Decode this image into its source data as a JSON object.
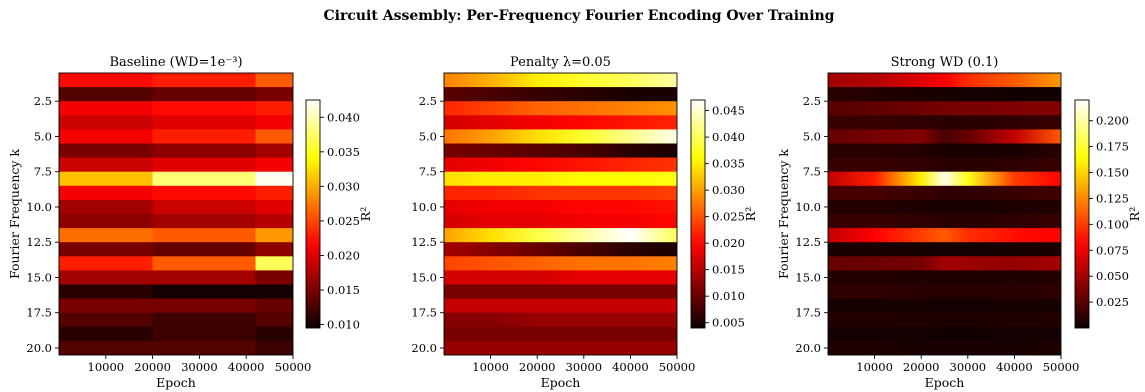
{
  "figure": {
    "title": "Circuit Assembly: Per-Frequency Fourier Encoding Over Training"
  },
  "chart_data": [
    {
      "type": "heatmap",
      "title": "Baseline (WD=1e⁻³)",
      "xlabel": "Epoch",
      "ylabel": "Fourier Frequency k",
      "colorbar_label": "R²",
      "colormap": "hot",
      "xlim": [
        0,
        50000
      ],
      "ylim": [
        20.5,
        0.5
      ],
      "x_ticks": [
        10000,
        20000,
        30000,
        40000,
        50000
      ],
      "y_ticks": [
        2.5,
        5.0,
        7.5,
        10.0,
        12.5,
        15.0,
        17.5,
        20.0
      ],
      "colorbar_ticks": [
        0.01,
        0.015,
        0.02,
        0.025,
        0.03,
        0.035,
        0.04
      ],
      "color_range": [
        0.0095,
        0.0425
      ],
      "epochs": [
        0,
        20000,
        42000,
        50000
      ],
      "frequencies": [
        1,
        2,
        3,
        4,
        5,
        6,
        7,
        8,
        9,
        10,
        11,
        12,
        13,
        14,
        15,
        16,
        17,
        18,
        19,
        20
      ],
      "values": [
        [
          0.022,
          0.023,
          0.026
        ],
        [
          0.013,
          0.014,
          0.015
        ],
        [
          0.021,
          0.022,
          0.023
        ],
        [
          0.019,
          0.02,
          0.021
        ],
        [
          0.021,
          0.023,
          0.026
        ],
        [
          0.015,
          0.016,
          0.017
        ],
        [
          0.019,
          0.02,
          0.021
        ],
        [
          0.031,
          0.038,
          0.042
        ],
        [
          0.021,
          0.022,
          0.023
        ],
        [
          0.017,
          0.019,
          0.02
        ],
        [
          0.016,
          0.017,
          0.018
        ],
        [
          0.027,
          0.026,
          0.029
        ],
        [
          0.015,
          0.014,
          0.016
        ],
        [
          0.023,
          0.026,
          0.037
        ],
        [
          0.017,
          0.017,
          0.015
        ],
        [
          0.011,
          0.01,
          0.01
        ],
        [
          0.015,
          0.015,
          0.014
        ],
        [
          0.013,
          0.012,
          0.013
        ],
        [
          0.011,
          0.012,
          0.011
        ],
        [
          0.013,
          0.013,
          0.012
        ]
      ]
    },
    {
      "type": "heatmap",
      "title": "Penalty λ=0.05",
      "xlabel": "Epoch",
      "ylabel": "",
      "colorbar_label": "R²",
      "colormap": "hot",
      "xlim": [
        0,
        50000
      ],
      "ylim": [
        20.5,
        0.5
      ],
      "x_ticks": [
        10000,
        20000,
        30000,
        40000,
        50000
      ],
      "y_ticks": [
        2.5,
        5.0,
        7.5,
        10.0,
        12.5,
        15.0,
        17.5,
        20.0
      ],
      "colorbar_ticks": [
        0.005,
        0.01,
        0.015,
        0.02,
        0.025,
        0.03,
        0.035,
        0.04,
        0.045
      ],
      "color_range": [
        0.004,
        0.047
      ],
      "epochs": [
        0,
        10000,
        20000,
        30000,
        40000,
        50000
      ],
      "frequencies": [
        1,
        2,
        3,
        4,
        5,
        6,
        7,
        8,
        9,
        10,
        11,
        12,
        13,
        14,
        15,
        16,
        17,
        18,
        19,
        20
      ],
      "values": [
        [
          0.028,
          0.031,
          0.035,
          0.038,
          0.04,
          0.043
        ],
        [
          0.009,
          0.008,
          0.007,
          0.006,
          0.005,
          0.005
        ],
        [
          0.022,
          0.024,
          0.026,
          0.027,
          0.028,
          0.029
        ],
        [
          0.017,
          0.018,
          0.019,
          0.02,
          0.021,
          0.022
        ],
        [
          0.027,
          0.03,
          0.034,
          0.038,
          0.042,
          0.046
        ],
        [
          0.011,
          0.01,
          0.009,
          0.008,
          0.006,
          0.005
        ],
        [
          0.018,
          0.019,
          0.02,
          0.021,
          0.022,
          0.023
        ],
        [
          0.034,
          0.035,
          0.035,
          0.036,
          0.036,
          0.037
        ],
        [
          0.022,
          0.022,
          0.023,
          0.023,
          0.023,
          0.024
        ],
        [
          0.018,
          0.019,
          0.019,
          0.02,
          0.02,
          0.021
        ],
        [
          0.017,
          0.018,
          0.018,
          0.019,
          0.019,
          0.02
        ],
        [
          0.03,
          0.034,
          0.039,
          0.043,
          0.047,
          0.04
        ],
        [
          0.014,
          0.012,
          0.01,
          0.008,
          0.006,
          0.005
        ],
        [
          0.024,
          0.025,
          0.026,
          0.027,
          0.027,
          0.028
        ],
        [
          0.017,
          0.017,
          0.017,
          0.018,
          0.018,
          0.018
        ],
        [
          0.011,
          0.011,
          0.011,
          0.011,
          0.011,
          0.011
        ],
        [
          0.016,
          0.016,
          0.016,
          0.016,
          0.016,
          0.016
        ],
        [
          0.012,
          0.012,
          0.013,
          0.013,
          0.013,
          0.013
        ],
        [
          0.011,
          0.011,
          0.011,
          0.011,
          0.011,
          0.011
        ],
        [
          0.013,
          0.013,
          0.013,
          0.013,
          0.013,
          0.013
        ]
      ]
    },
    {
      "type": "heatmap",
      "title": "Strong WD (0.1)",
      "xlabel": "Epoch",
      "ylabel": "Fourier Frequency k",
      "colorbar_label": "R²",
      "colormap": "hot",
      "xlim": [
        0,
        50000
      ],
      "ylim": [
        20.5,
        0.5
      ],
      "x_ticks": [
        10000,
        20000,
        30000,
        40000,
        50000
      ],
      "y_ticks": [
        2.5,
        5.0,
        7.5,
        10.0,
        12.5,
        15.0,
        17.5,
        20.0
      ],
      "colorbar_ticks": [
        0.025,
        0.05,
        0.075,
        0.1,
        0.125,
        0.15,
        0.175,
        0.2
      ],
      "color_range": [
        0.0,
        0.22
      ],
      "epochs": [
        0,
        10000,
        20000,
        25000,
        30000,
        40000,
        50000
      ],
      "frequencies": [
        1,
        2,
        3,
        4,
        5,
        6,
        7,
        8,
        9,
        10,
        11,
        12,
        13,
        14,
        15,
        16,
        17,
        18,
        19,
        20
      ],
      "values": [
        [
          0.05,
          0.055,
          0.07,
          0.08,
          0.095,
          0.11,
          0.13
        ],
        [
          0.01,
          0.008,
          0.005,
          0.004,
          0.003,
          0.002,
          0.002
        ],
        [
          0.025,
          0.028,
          0.032,
          0.035,
          0.036,
          0.038,
          0.04
        ],
        [
          0.015,
          0.015,
          0.012,
          0.01,
          0.01,
          0.012,
          0.015
        ],
        [
          0.03,
          0.035,
          0.04,
          0.02,
          0.03,
          0.06,
          0.11
        ],
        [
          0.01,
          0.01,
          0.008,
          0.005,
          0.005,
          0.005,
          0.01
        ],
        [
          0.015,
          0.015,
          0.012,
          0.01,
          0.01,
          0.012,
          0.015
        ],
        [
          0.06,
          0.09,
          0.16,
          0.215,
          0.17,
          0.1,
          0.08
        ],
        [
          0.02,
          0.02,
          0.015,
          0.012,
          0.012,
          0.015,
          0.018
        ],
        [
          0.008,
          0.008,
          0.006,
          0.005,
          0.005,
          0.006,
          0.008
        ],
        [
          0.015,
          0.015,
          0.012,
          0.01,
          0.01,
          0.012,
          0.015
        ],
        [
          0.06,
          0.08,
          0.1,
          0.11,
          0.095,
          0.085,
          0.08
        ],
        [
          0.005,
          0.005,
          0.004,
          0.003,
          0.003,
          0.004,
          0.005
        ],
        [
          0.03,
          0.032,
          0.035,
          0.05,
          0.048,
          0.045,
          0.05
        ],
        [
          0.008,
          0.008,
          0.007,
          0.006,
          0.006,
          0.007,
          0.008
        ],
        [
          0.012,
          0.012,
          0.01,
          0.01,
          0.01,
          0.01,
          0.012
        ],
        [
          0.004,
          0.004,
          0.004,
          0.003,
          0.003,
          0.004,
          0.004
        ],
        [
          0.008,
          0.008,
          0.007,
          0.006,
          0.006,
          0.007,
          0.008
        ],
        [
          0.003,
          0.003,
          0.003,
          0.002,
          0.002,
          0.003,
          0.003
        ],
        [
          0.006,
          0.006,
          0.005,
          0.005,
          0.005,
          0.005,
          0.006
        ]
      ]
    }
  ]
}
